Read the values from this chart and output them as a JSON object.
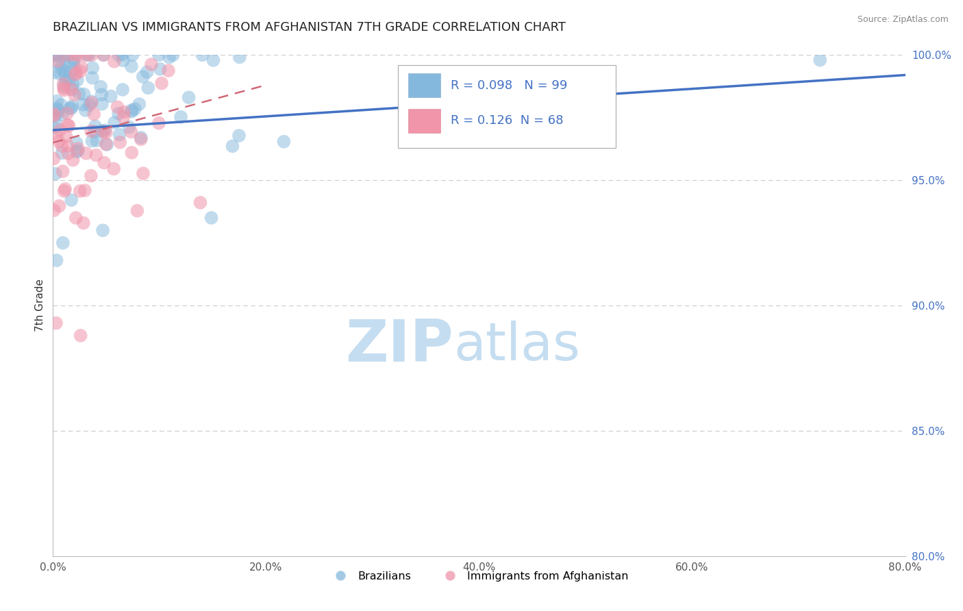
{
  "title": "BRAZILIAN VS IMMIGRANTS FROM AFGHANISTAN 7TH GRADE CORRELATION CHART",
  "source": "Source: ZipAtlas.com",
  "ylabel": "7th Grade",
  "x_min": 0.0,
  "x_max": 80.0,
  "y_min": 80.0,
  "y_max": 100.0,
  "x_ticks": [
    0.0,
    20.0,
    40.0,
    60.0,
    80.0
  ],
  "y_ticks": [
    80.0,
    85.0,
    90.0,
    95.0,
    100.0
  ],
  "legend_entries": [
    {
      "label": "Brazilians",
      "color": "#a8c8e8",
      "R": "0.098",
      "N": "99"
    },
    {
      "label": "Immigrants from Afghanistan",
      "color": "#f4a0b5",
      "R": "0.126",
      "N": "68"
    }
  ],
  "blue_dot_color": "#85b8dd",
  "pink_dot_color": "#f095aa",
  "blue_line_color": "#4472c4",
  "pink_line_color": "#d06878",
  "blue_line_x": [
    0.0,
    80.0
  ],
  "blue_line_y": [
    97.0,
    99.2
  ],
  "pink_line_x": [
    0.0,
    20.0
  ],
  "pink_line_y": [
    96.5,
    98.8
  ],
  "watermark_zip": "ZIP",
  "watermark_atlas": "atlas",
  "watermark_color_zip": "#c5ddf0",
  "watermark_color_atlas": "#c5ddf0",
  "title_color": "#222222",
  "title_fontsize": 13,
  "source_fontsize": 9,
  "background_color": "#ffffff",
  "grid_color": "#cccccc",
  "seed": 42
}
